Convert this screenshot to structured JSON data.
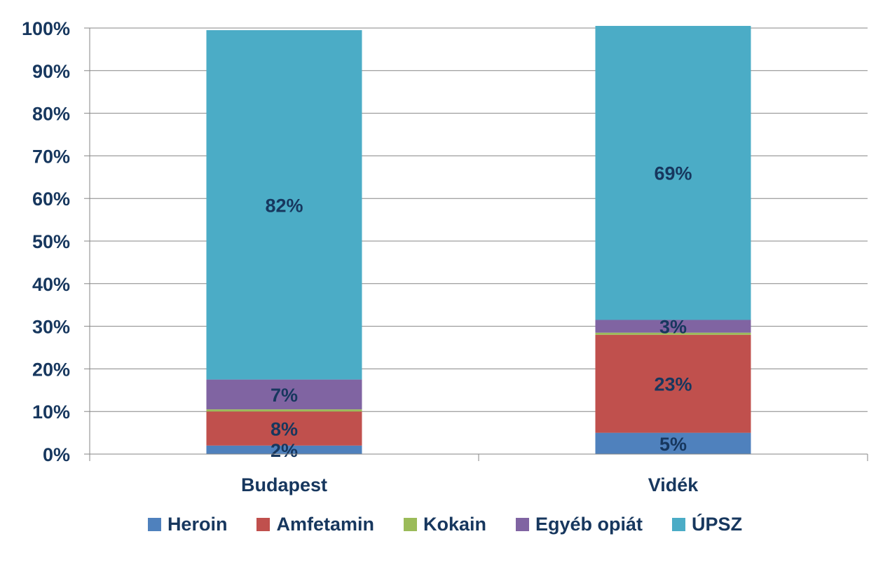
{
  "chart_data": {
    "type": "bar",
    "stacked": true,
    "categories": [
      "Budapest",
      "Vidék"
    ],
    "series": [
      {
        "name": "Heroin",
        "values": [
          2,
          5
        ],
        "color": "#4f81bd",
        "labels": [
          "2%",
          "5%"
        ]
      },
      {
        "name": "Amfetamin",
        "values": [
          8,
          23
        ],
        "color": "#c0504d",
        "labels": [
          "8%",
          "23%"
        ]
      },
      {
        "name": "Kokain",
        "values": [
          0.5,
          0.5
        ],
        "color": "#9bbb59",
        "labels": [
          "",
          ""
        ]
      },
      {
        "name": "Egyéb opiát",
        "values": [
          7,
          3
        ],
        "color": "#8064a2",
        "labels": [
          "7%",
          "3%"
        ]
      },
      {
        "name": "ÚPSZ",
        "values": [
          82,
          69
        ],
        "color": "#4bacc6",
        "labels": [
          "82%",
          "69%"
        ]
      }
    ],
    "ylim": [
      0,
      100
    ],
    "yticks": [
      "0%",
      "10%",
      "20%",
      "30%",
      "40%",
      "50%",
      "60%",
      "70%",
      "80%",
      "90%",
      "100%"
    ],
    "grid": true,
    "legend_position": "bottom",
    "text_color": "#17375e"
  }
}
